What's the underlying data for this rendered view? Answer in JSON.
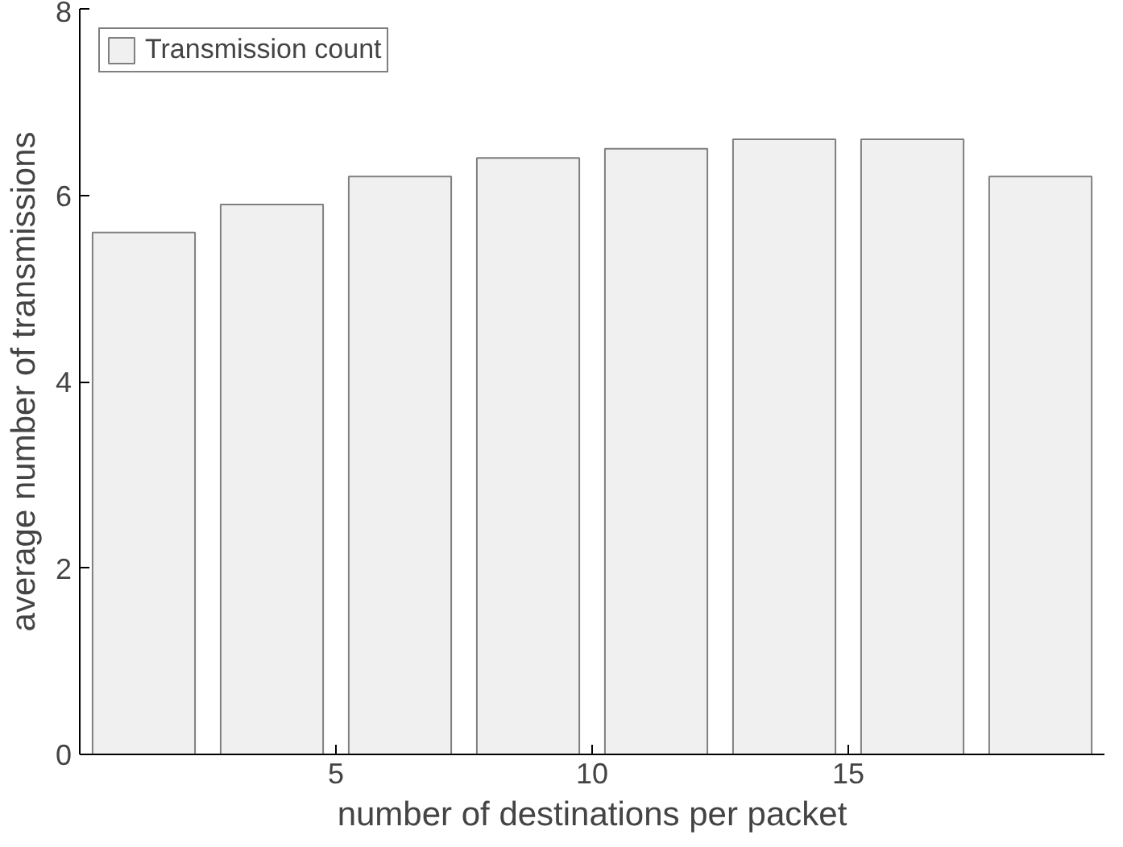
{
  "chart_data": {
    "type": "bar",
    "xlabel": "number of destinations per packet",
    "ylabel": "average number of transmissions",
    "x": [
      1.25,
      3.75,
      6.25,
      8.75,
      11.25,
      13.75,
      16.25,
      18.75
    ],
    "series": [
      {
        "name": "Transmission count",
        "color": "#f0f0f0",
        "values": [
          5.6,
          5.9,
          6.2,
          6.4,
          6.5,
          6.6,
          6.6,
          6.2
        ]
      }
    ],
    "xlim": [
      0,
      20
    ],
    "ylim": [
      0,
      8
    ],
    "xticks": [
      5,
      10,
      15
    ],
    "yticks": [
      0,
      2,
      4,
      6,
      8
    ],
    "grid": false,
    "legend": "top left"
  }
}
